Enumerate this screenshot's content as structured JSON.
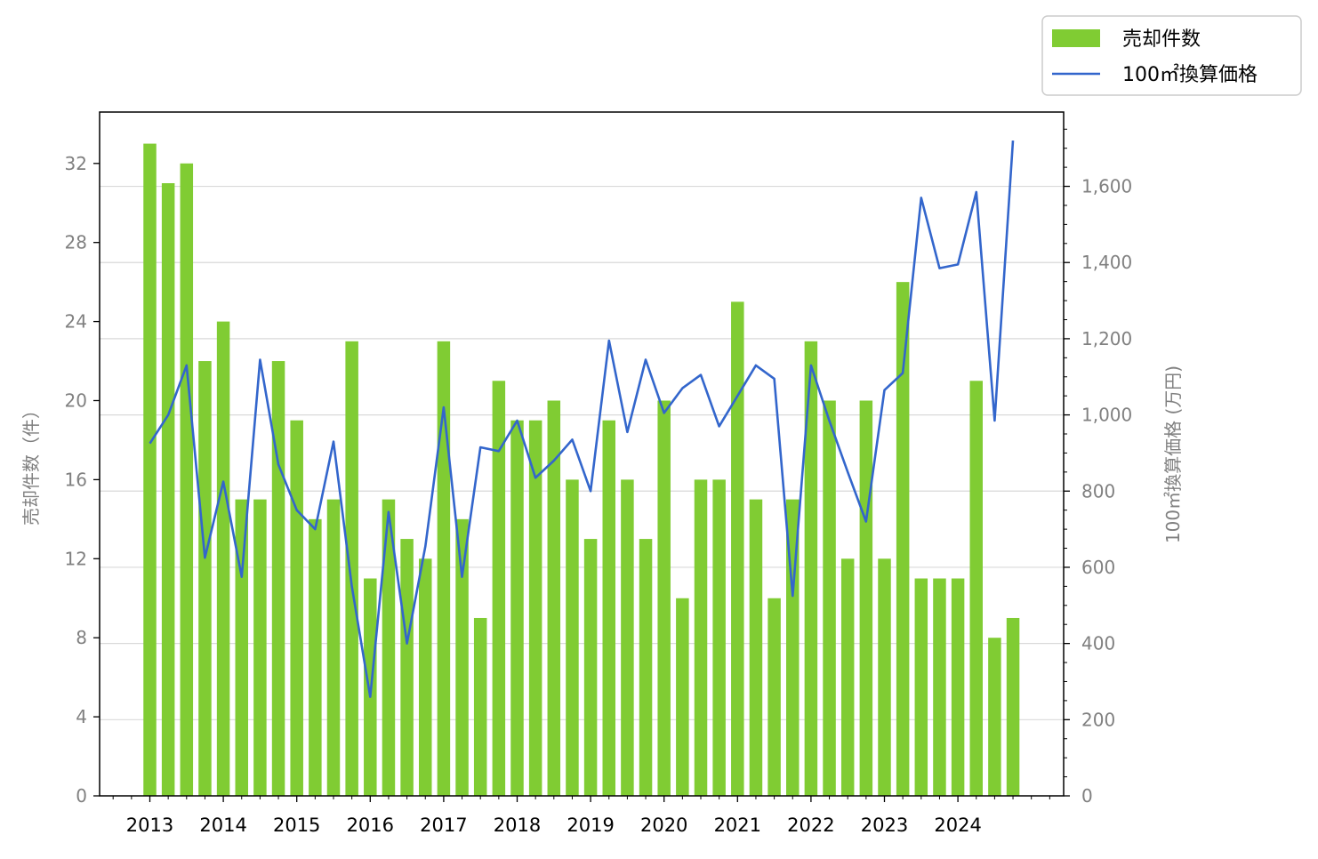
{
  "colors": {
    "bar": "#80cc33",
    "line": "#3366cc",
    "grid": "#d9d9d9",
    "axis": "#000000",
    "tick_label": "#808080"
  },
  "chart_data": {
    "type": "bar+line",
    "bar_series": {
      "name": "売却件数",
      "axis": "left",
      "values": [
        33,
        31,
        32,
        22,
        24,
        15,
        15,
        22,
        19,
        14,
        15,
        23,
        11,
        15,
        13,
        12,
        23,
        14,
        9,
        21,
        19,
        19,
        20,
        16,
        13,
        19,
        16,
        13,
        20,
        10,
        16,
        16,
        25,
        15,
        10,
        15,
        23,
        20,
        12,
        20,
        12,
        26,
        11,
        11,
        11,
        21,
        8,
        9
      ]
    },
    "line_series": {
      "name": "100㎡換算価格",
      "axis": "right",
      "values": [
        925,
        1000,
        1130,
        625,
        825,
        575,
        1145,
        870,
        750,
        700,
        930,
        550,
        260,
        745,
        400,
        655,
        1020,
        575,
        915,
        905,
        985,
        835,
        880,
        935,
        800,
        1195,
        955,
        1145,
        1005,
        1070,
        1105,
        970,
        1050,
        1130,
        1095,
        525,
        1130,
        985,
        850,
        720,
        1065,
        1110,
        1570,
        1385,
        1395,
        1585,
        985,
        1720
      ]
    },
    "x_start": "2013Q1",
    "x_tick_labels": [
      "2013",
      "2014",
      "2015",
      "2016",
      "2017",
      "2018",
      "2019",
      "2020",
      "2021",
      "2022",
      "2023",
      "2024"
    ],
    "y_left": {
      "label": "売却件数（件）",
      "range": [
        0,
        34.6
      ],
      "ticks": [
        0,
        4,
        8,
        12,
        16,
        20,
        24,
        28,
        32
      ]
    },
    "y_right": {
      "label": "100㎡換算価格 (万円)",
      "range": [
        0,
        1795
      ],
      "ticks": [
        0,
        200,
        400,
        600,
        800,
        1000,
        1200,
        1400,
        1600
      ],
      "tick_labels": [
        "0",
        "200",
        "400",
        "600",
        "800",
        "1,000",
        "1,200",
        "1,400",
        "1,600"
      ]
    },
    "grid": "horizontal, right-axis ticks",
    "legend": {
      "placement": "top-right, outside plot",
      "entries": [
        "売却件数",
        "100㎡換算価格"
      ]
    }
  }
}
